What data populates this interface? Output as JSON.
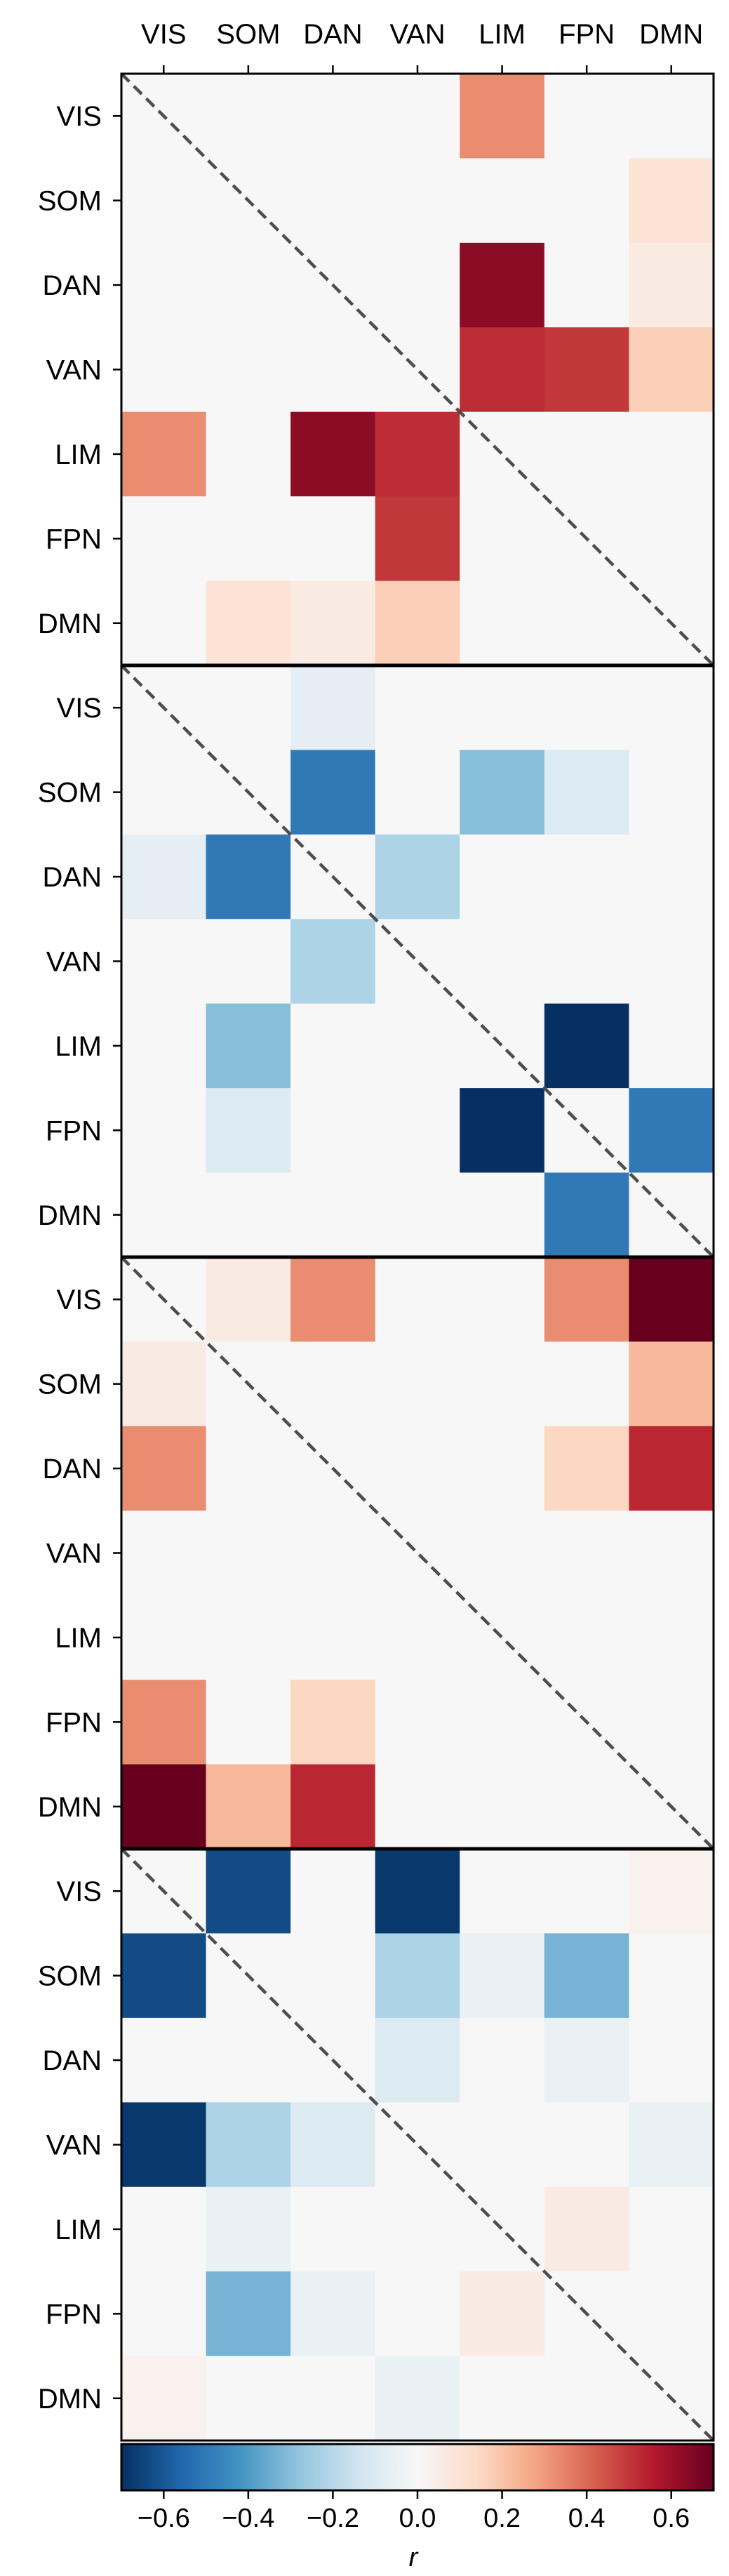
{
  "chart_data": {
    "type": "heatmap",
    "row_labels": [
      "VIS",
      "SOM",
      "DAN",
      "VAN",
      "LIM",
      "FPN",
      "DMN"
    ],
    "column_labels": [
      "VIS",
      "SOM",
      "DAN",
      "VAN",
      "LIM",
      "FPN",
      "DMN"
    ],
    "panels": [
      {
        "values": [
          [
            0,
            0,
            0,
            0,
            0.33,
            0,
            0
          ],
          [
            0,
            0,
            0,
            0,
            0,
            0,
            0.1
          ],
          [
            0,
            0,
            0,
            0,
            0.63,
            0,
            0.06
          ],
          [
            0,
            0,
            0,
            0,
            0.52,
            0.5,
            0.17
          ],
          [
            0.33,
            0,
            0.63,
            0.52,
            0,
            0,
            0
          ],
          [
            0,
            0,
            0,
            0.5,
            0,
            0,
            0
          ],
          [
            0,
            0.1,
            0.06,
            0.17,
            0,
            0,
            0
          ]
        ]
      },
      {
        "values": [
          [
            0,
            0,
            -0.07,
            0,
            0,
            0,
            0
          ],
          [
            0,
            0,
            -0.5,
            0,
            -0.3,
            -0.1,
            0
          ],
          [
            -0.07,
            -0.5,
            0,
            -0.22,
            0,
            0,
            0
          ],
          [
            0,
            0,
            -0.22,
            0,
            0,
            0,
            0
          ],
          [
            0,
            -0.3,
            0,
            0,
            0,
            -0.7,
            0
          ],
          [
            0,
            -0.1,
            0,
            0,
            -0.7,
            0,
            -0.5
          ],
          [
            0,
            0,
            0,
            0,
            0,
            -0.5,
            0
          ]
        ]
      },
      {
        "values": [
          [
            0,
            0.06,
            0.33,
            0,
            0,
            0.33,
            0.7
          ],
          [
            0.06,
            0,
            0,
            0,
            0,
            0,
            0.23
          ],
          [
            0.33,
            0,
            0,
            0,
            0,
            0.15,
            0.53
          ],
          [
            0,
            0,
            0,
            0,
            0,
            0,
            0
          ],
          [
            0,
            0,
            0,
            0,
            0,
            0,
            0
          ],
          [
            0.33,
            0,
            0.15,
            0,
            0,
            0,
            0
          ],
          [
            0.7,
            0.23,
            0.53,
            0,
            0,
            0,
            0
          ]
        ]
      },
      {
        "values": [
          [
            0,
            -0.63,
            0,
            -0.68,
            0,
            0,
            0.03
          ],
          [
            -0.63,
            0,
            0,
            -0.22,
            -0.05,
            -0.33,
            0
          ],
          [
            0,
            0,
            0,
            -0.1,
            0,
            -0.05,
            0
          ],
          [
            -0.68,
            -0.22,
            -0.1,
            0,
            0,
            0,
            -0.05
          ],
          [
            0,
            -0.05,
            0,
            0,
            0,
            0.06,
            0
          ],
          [
            0,
            -0.33,
            -0.05,
            0,
            0.06,
            0,
            0
          ],
          [
            0.03,
            0,
            0,
            -0.05,
            0,
            0,
            0
          ]
        ]
      }
    ],
    "colorbar": {
      "label": "r",
      "range": [
        -0.7,
        0.7
      ],
      "ticks": [
        -0.6,
        -0.4,
        -0.2,
        0.0,
        0.2,
        0.4,
        0.6
      ],
      "tick_labels": [
        "−0.6",
        "−0.4",
        "−0.2",
        "0.0",
        "0.2",
        "0.4",
        "0.6"
      ],
      "colormap": "RdBu_r",
      "colors": [
        "#053061",
        "#2166ac",
        "#4393c3",
        "#92c5de",
        "#d1e5f0",
        "#f7f7f7",
        "#fddbc7",
        "#f4a582",
        "#d6604d",
        "#b2182b",
        "#67001f"
      ]
    },
    "diagonal_line": "dashed",
    "line_color": "#4d4d4d",
    "grid": false
  }
}
